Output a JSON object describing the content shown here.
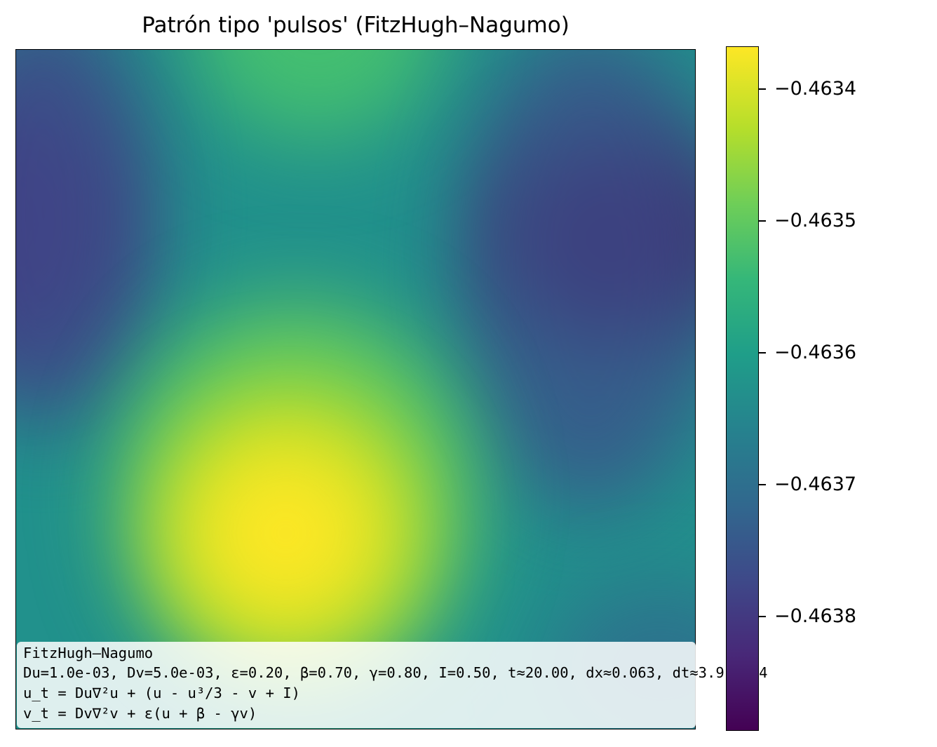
{
  "chart_data": {
    "type": "heatmap",
    "title": "Patrón tipo 'pulsos' (FitzHugh–Nagumo)",
    "xlabel": "",
    "ylabel": "",
    "colormap": "viridis",
    "colorbar": {
      "range": [
        -0.46385,
        -0.46333
      ],
      "ticks": [
        -0.4634,
        -0.4635,
        -0.4636,
        -0.4637,
        -0.4638
      ],
      "tick_labels": [
        "−0.4634",
        "−0.4635",
        "−0.4636",
        "−0.4637",
        "−0.4638"
      ]
    },
    "features": [
      {
        "kind": "maximum",
        "value": -0.46333,
        "location_fraction": [
          0.38,
          0.7
        ]
      },
      {
        "kind": "minimum",
        "value": -0.46385,
        "location_fraction": [
          0.92,
          0.25
        ]
      },
      {
        "kind": "minimum",
        "value": -0.46382,
        "location_fraction": [
          0.0,
          0.25
        ]
      },
      {
        "kind": "local_high",
        "value": -0.4635,
        "location_fraction": [
          0.4,
          0.0
        ]
      }
    ],
    "annotation": {
      "lines": [
        "FitzHugh–Nagumo",
        "Du=1.0e-03, Dv=5.0e-03, ε=0.20, β=0.70, γ=0.80, I=0.50, t≈20.00, dx≈0.063, dt≈3.91e-04",
        "u_t = Du∇²u + (u - u³/3 - v + I)",
        "v_t = Dv∇²v + ε(u + β - γv)"
      ]
    }
  }
}
